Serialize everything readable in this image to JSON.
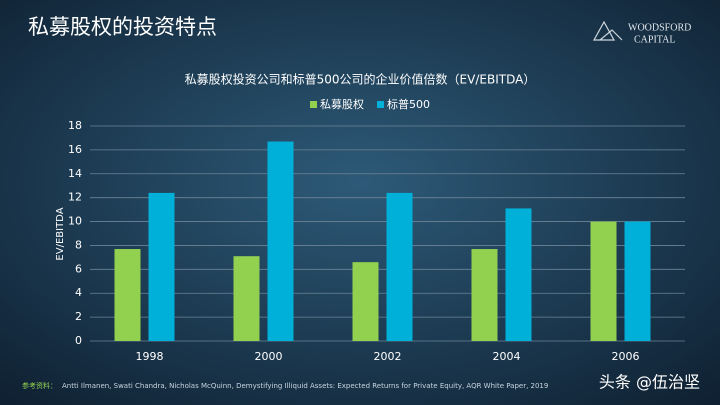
{
  "slide": {
    "title": "私募股权的投资特点",
    "logo": [
      "WOODSFORD",
      "CAPITAL"
    ],
    "source_label": "参考资料：",
    "source": "Antti Ilmanen, Swati Chandra, Nicholas McQuinn, Demystifying Illiquid Assets: Expected Returns for Private Equity, AQR White Paper, 2019",
    "watermark": "头条 @伍治坚"
  },
  "chart_data": {
    "type": "bar",
    "title": "私募股权投资公司和标普500公司的企业价值倍数（EV/EBITDA）",
    "y_label": "EV/EBITDA",
    "categories": [
      "1998",
      "2000",
      "2002",
      "2004",
      "2006"
    ],
    "series": [
      {
        "name": "私募股权",
        "color": "#92d050",
        "values": [
          7.7,
          7.1,
          6.6,
          7.7,
          10.0
        ]
      },
      {
        "name": "标普500",
        "color": "#00b0d8",
        "values": [
          12.4,
          16.7,
          12.4,
          11.1,
          10.0
        ]
      }
    ],
    "ylim": [
      0,
      18
    ],
    "yticks": [
      0,
      2,
      4,
      6,
      8,
      10,
      12,
      14,
      16,
      18
    ],
    "grid": true,
    "legend": "top"
  }
}
